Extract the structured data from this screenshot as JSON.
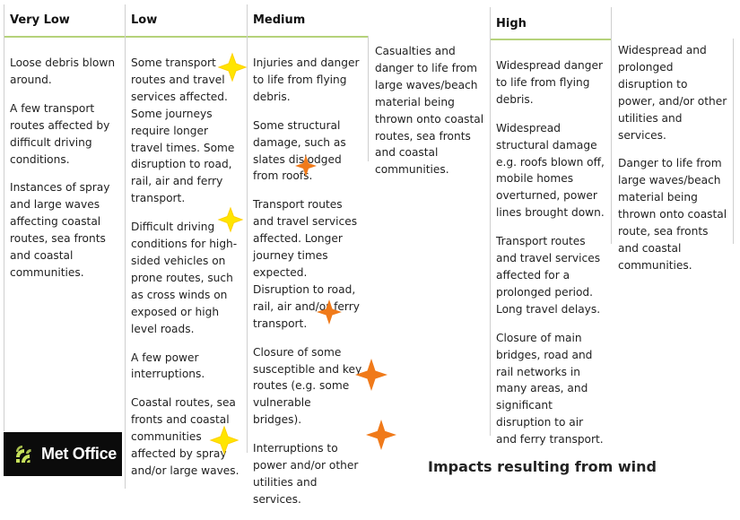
{
  "headers": {
    "very_low": "Very Low",
    "low": "Low",
    "medium": "Medium",
    "high": "High"
  },
  "very_low": [
    "Loose debris blown around.",
    "A few transport routes affected by difficult driving conditions.",
    "Instances of spray and large waves affecting coastal routes, sea fronts and coastal communities."
  ],
  "low": [
    "Some transport routes and travel services affected. Some journeys require longer travel times.  Some disruption to road, rail, air and ferry transport.",
    "Difficult driving conditions for high-sided vehicles on prone routes, such as cross winds on exposed or high level roads.",
    "A few power interruptions.",
    "Coastal routes, sea fronts and coastal communities affected by spray and/or large waves."
  ],
  "medium": [
    "Injuries and danger to life from flying debris.",
    "Some structural damage, such as slates dislodged from roofs.",
    "Transport routes and travel services affected.  Longer journey times expected.  Disruption to road, rail, air and/or ferry transport.",
    "Closure of some susceptible and key routes (e.g. some vulnerable bridges).",
    "Interruptions to power and/or other utilities and services."
  ],
  "medium_extra": [
    "Casualties and danger to life from large waves/beach material being thrown onto coastal routes, sea fronts and coastal communities."
  ],
  "high": [
    "Widespread danger to life from flying debris.",
    "Widespread structural damage e.g. roofs blown off, mobile homes overturned, power lines brought down.",
    "Transport routes and travel services affected for a prolonged period. Long travel delays.",
    "Closure of main bridges, road and rail networks in many areas, and significant disruption to air and ferry transport."
  ],
  "high_extra": [
    "Widespread and prolonged disruption to power, and/or other utilities and services.",
    "Danger to life from large waves/beach material being thrown onto coastal route, sea fronts and coastal communities."
  ],
  "logo": {
    "text": "Met Office"
  },
  "caption": "Impacts resulting from wind",
  "colors": {
    "yellow_star": "#ffe500",
    "orange_star": "#f07a1a",
    "header_rule": "#b5d27a"
  }
}
